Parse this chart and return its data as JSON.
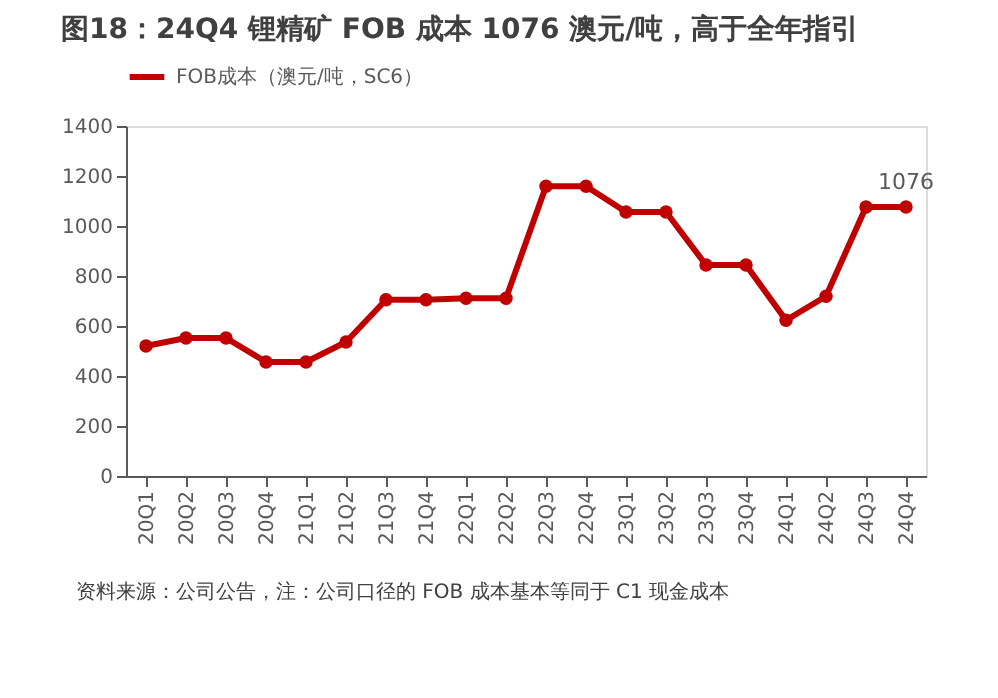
{
  "chart_data": {
    "type": "line",
    "title": "图18：24Q4 锂精矿 FOB 成本 1076 澳元/吨，高于全年指引",
    "categories": [
      "20Q1",
      "20Q2",
      "20Q3",
      "20Q4",
      "21Q1",
      "21Q2",
      "21Q3",
      "21Q4",
      "22Q1",
      "22Q2",
      "22Q3",
      "22Q4",
      "23Q1",
      "23Q2",
      "23Q3",
      "23Q4",
      "24Q1",
      "24Q2",
      "24Q3",
      "24Q4"
    ],
    "series": [
      {
        "name": "FOB成本（澳元/吨，SC6）",
        "color": "#c00000",
        "values": [
          520,
          552,
          552,
          456,
          456,
          536,
          705,
          705,
          711,
          711,
          1159,
          1159,
          1056,
          1056,
          844,
          844,
          623,
          719,
          1076,
          1076
        ]
      }
    ],
    "ylim": [
      0,
      1400
    ],
    "yticks": [
      0,
      200,
      400,
      600,
      800,
      1000,
      1200,
      1400
    ],
    "grid": false,
    "legend": "top",
    "marker": "circle",
    "line_style": "solid",
    "annotations": [
      {
        "text": "1076",
        "x": "24Q4",
        "y": 1076
      },
      "资料来源：公司公告，注：公司口径的 FOB 成本基本等同于 C1 现金成本"
    ]
  }
}
